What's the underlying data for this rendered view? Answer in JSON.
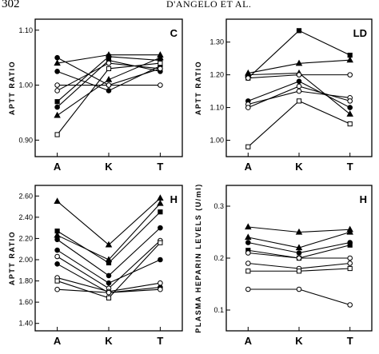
{
  "header": {
    "page_number": "302",
    "running_head": "D'ANGELO ET AL."
  },
  "chart_data": [
    {
      "type": "line",
      "panel_label": "C",
      "categories": [
        "A",
        "K",
        "T"
      ],
      "ylabel": "APTT RATIO",
      "ylim": [
        0.87,
        1.12
      ],
      "yticks": [
        "0.90",
        "1.00",
        "1.10"
      ],
      "ytick_values": [
        0.9,
        1.0,
        1.1
      ],
      "series": [
        {
          "marker": "circle-filled",
          "values": [
            1.05,
            1.0,
            1.03
          ]
        },
        {
          "marker": "triangle-filled",
          "values": [
            1.04,
            1.055,
            1.055
          ]
        },
        {
          "marker": "square-filled",
          "values": [
            0.97,
            1.052,
            1.045
          ]
        },
        {
          "marker": "circle-filled",
          "values": [
            0.96,
            1.045,
            1.025
          ]
        },
        {
          "marker": "triangle-filled",
          "values": [
            0.945,
            1.01,
            1.05
          ]
        },
        {
          "marker": "circle-filled",
          "values": [
            1.025,
            0.99,
            1.035
          ]
        },
        {
          "marker": "circle-open",
          "values": [
            1.0,
            1.0,
            1.0
          ]
        },
        {
          "marker": "circle-open",
          "values": [
            0.99,
            1.04,
            1.03
          ]
        },
        {
          "marker": "square-open",
          "values": [
            0.91,
            1.03,
            1.04
          ]
        }
      ]
    },
    {
      "type": "line",
      "panel_label": "LD",
      "categories": [
        "A",
        "K",
        "T"
      ],
      "ylabel": "APTT RATIO",
      "ylim": [
        0.95,
        1.37
      ],
      "yticks": [
        "1.00",
        "1.10",
        "1.20",
        "1.30"
      ],
      "ytick_values": [
        1.0,
        1.1,
        1.2,
        1.3
      ],
      "series": [
        {
          "marker": "square-filled",
          "values": [
            1.19,
            1.335,
            1.26
          ]
        },
        {
          "marker": "triangle-filled",
          "values": [
            1.205,
            1.235,
            1.245
          ]
        },
        {
          "marker": "triangle-filled",
          "values": [
            1.2,
            1.205,
            1.08
          ]
        },
        {
          "marker": "circle-open",
          "values": [
            1.19,
            1.2,
            1.2
          ]
        },
        {
          "marker": "circle-filled",
          "values": [
            1.12,
            1.18,
            1.1
          ]
        },
        {
          "marker": "circle-open",
          "values": [
            1.11,
            1.15,
            1.13
          ]
        },
        {
          "marker": "circle-open",
          "values": [
            1.1,
            1.165,
            1.12
          ]
        },
        {
          "marker": "square-open",
          "values": [
            0.98,
            1.12,
            1.05
          ]
        }
      ]
    },
    {
      "type": "line",
      "panel_label": "H",
      "categories": [
        "A",
        "K",
        "T"
      ],
      "ylabel": "APTT RATIO",
      "ylim": [
        1.33,
        2.7
      ],
      "yticks": [
        "1.40",
        "1.60",
        "1.80",
        "2.00",
        "2.20",
        "2.40",
        "2.60"
      ],
      "ytick_values": [
        1.4,
        1.6,
        1.8,
        2.0,
        2.2,
        2.4,
        2.6
      ],
      "series": [
        {
          "marker": "triangle-filled",
          "values": [
            2.55,
            2.14,
            2.58
          ]
        },
        {
          "marker": "square-filled",
          "values": [
            2.27,
            1.97,
            2.45
          ]
        },
        {
          "marker": "triangle-filled",
          "values": [
            2.23,
            2.0,
            2.53
          ]
        },
        {
          "marker": "circle-filled",
          "values": [
            2.19,
            1.85,
            2.3
          ]
        },
        {
          "marker": "circle-filled",
          "values": [
            2.09,
            1.78,
            2.0
          ]
        },
        {
          "marker": "circle-open",
          "values": [
            2.03,
            1.73,
            2.18
          ]
        },
        {
          "marker": "circle-filled",
          "values": [
            1.96,
            1.69,
            1.74
          ]
        },
        {
          "marker": "circle-open",
          "values": [
            1.83,
            1.7,
            1.78
          ]
        },
        {
          "marker": "square-open",
          "values": [
            1.8,
            1.64,
            2.16
          ]
        },
        {
          "marker": "circle-open",
          "values": [
            1.72,
            1.69,
            1.72
          ]
        }
      ]
    },
    {
      "type": "line",
      "panel_label": "H",
      "categories": [
        "A",
        "K",
        "T"
      ],
      "ylabel": "PLASMA HEPARIN LEVELS (U/ml)",
      "ylim": [
        0.06,
        0.34
      ],
      "yticks": [
        "0.1",
        "0.2",
        "0.3"
      ],
      "ytick_values": [
        0.1,
        0.2,
        0.3
      ],
      "series": [
        {
          "marker": "triangle-filled",
          "values": [
            0.26,
            0.25,
            0.255
          ]
        },
        {
          "marker": "triangle-filled",
          "values": [
            0.24,
            0.22,
            0.25
          ]
        },
        {
          "marker": "circle-filled",
          "values": [
            0.23,
            0.21,
            0.23
          ]
        },
        {
          "marker": "square-filled",
          "values": [
            0.215,
            0.2,
            0.225
          ]
        },
        {
          "marker": "circle-open",
          "values": [
            0.21,
            0.2,
            0.2
          ]
        },
        {
          "marker": "circle-open",
          "values": [
            0.19,
            0.18,
            0.19
          ]
        },
        {
          "marker": "square-open",
          "values": [
            0.175,
            0.175,
            0.18
          ]
        },
        {
          "marker": "circle-open",
          "values": [
            0.14,
            0.14,
            0.11
          ]
        }
      ]
    }
  ]
}
